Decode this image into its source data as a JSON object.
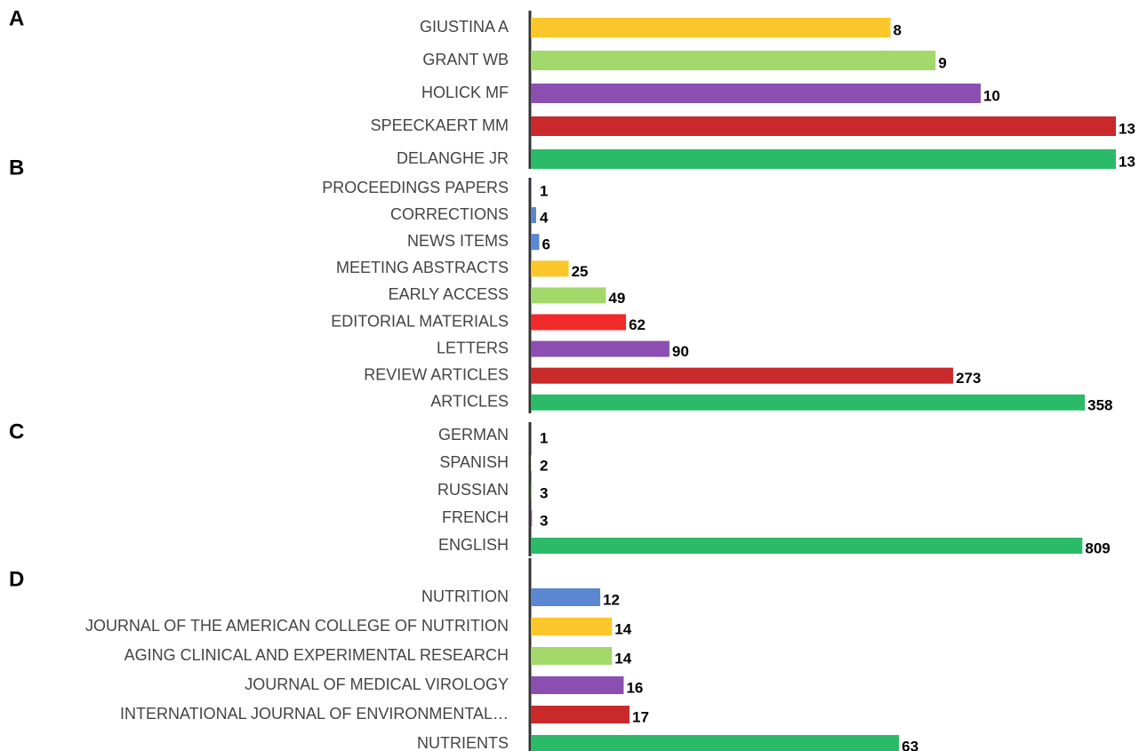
{
  "chart_data": [
    {
      "type": "hbar",
      "title": "A",
      "categories": [
        "GIUSTINA A",
        "GRANT WB",
        "HOLICK MF",
        "SPEECKAERT MM",
        "DELANGHE JR"
      ],
      "values": [
        8,
        9,
        10,
        13,
        13
      ],
      "colors": [
        "#fcc72a",
        "#a3d86b",
        "#8a4fb0",
        "#c9292b",
        "#2bbb68"
      ],
      "xlim": [
        0,
        13
      ]
    },
    {
      "type": "hbar",
      "title": "B",
      "categories": [
        "PROCEEDINGS PAPERS",
        "CORRECTIONS",
        "NEWS ITEMS",
        "MEETING ABSTRACTS",
        "EARLY ACCESS",
        "EDITORIAL MATERIALS",
        "LETTERS",
        "REVIEW ARTICLES",
        "ARTICLES"
      ],
      "values": [
        1,
        4,
        6,
        25,
        49,
        62,
        90,
        273,
        358
      ],
      "colors": [
        "#5b86d1",
        "#5b86d1",
        "#5b86d1",
        "#fcc72a",
        "#a3d86b",
        "#f02a2a",
        "#8a4fb0",
        "#c9292b",
        "#2bbb68"
      ],
      "xlim": [
        0,
        378
      ]
    },
    {
      "type": "hbar",
      "title": "C",
      "categories": [
        "GERMAN",
        "SPANISH",
        "RUSSIAN",
        "FRENCH",
        "ENGLISH"
      ],
      "values": [
        1,
        2,
        3,
        3,
        809
      ],
      "colors": [
        "#5b86d1",
        "#fcc72a",
        "#a3d86b",
        "#8a4fb0",
        "#2bbb68"
      ],
      "xlim": [
        0,
        858
      ]
    },
    {
      "type": "hbar",
      "title": "D",
      "categories": [
        "NUTRITION",
        "JOURNAL OF THE AMERICAN COLLEGE OF NUTRITION",
        "AGING CLINICAL AND EXPERIMENTAL RESEARCH",
        "JOURNAL OF MEDICAL VIROLOGY",
        "INTERNATIONAL JOURNAL OF ENVIRONMENTAL…",
        "NUTRIENTS"
      ],
      "values": [
        12,
        14,
        14,
        16,
        17,
        63
      ],
      "colors": [
        "#5b86d1",
        "#fcc72a",
        "#a3d86b",
        "#8a4fb0",
        "#c9292b",
        "#2bbb68"
      ],
      "xlim": [
        0,
        100
      ]
    }
  ]
}
